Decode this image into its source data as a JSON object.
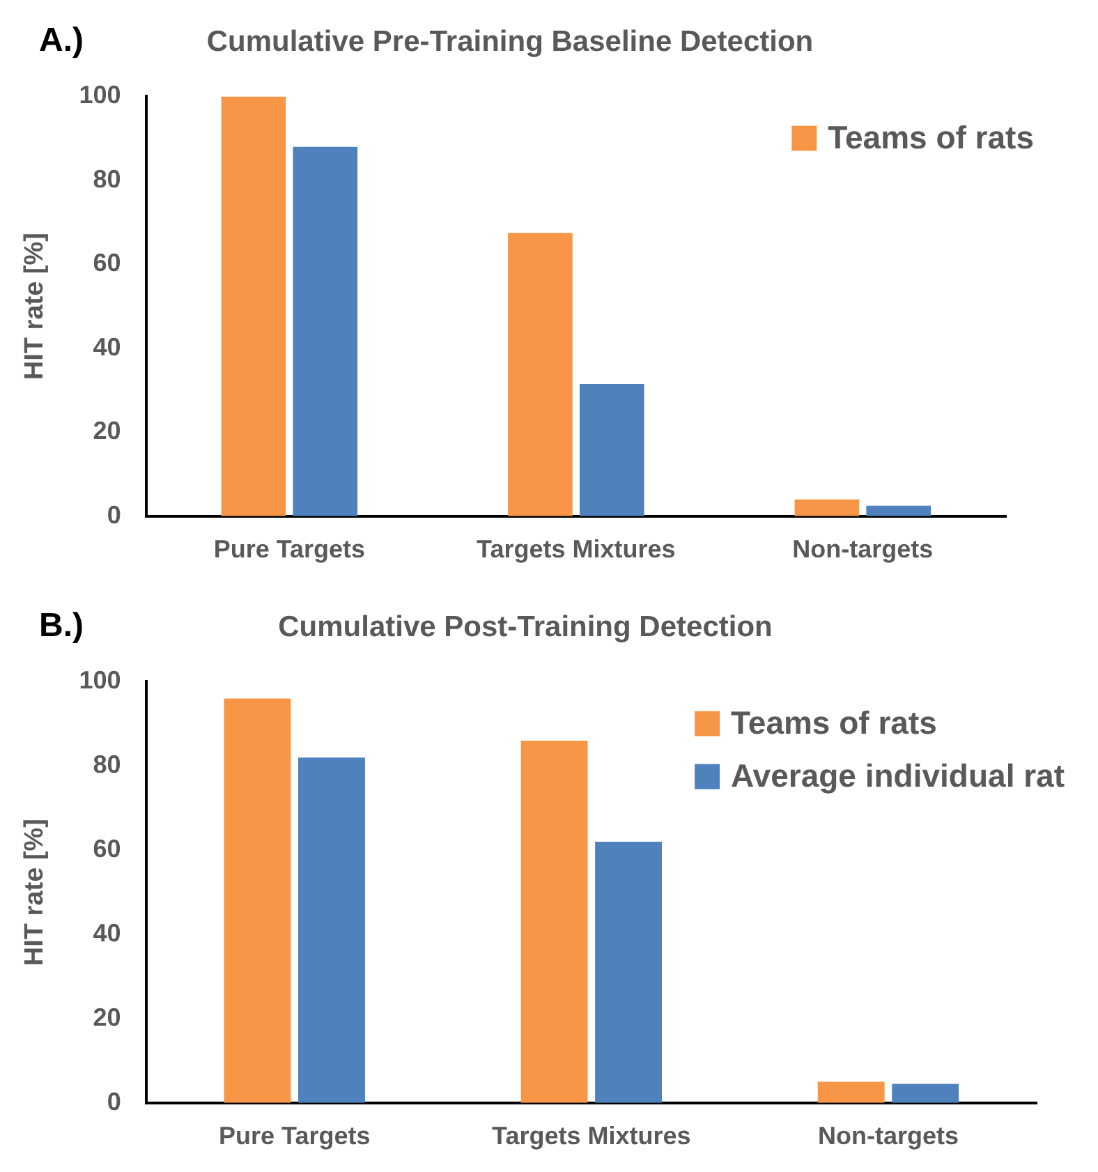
{
  "chart_data": [
    {
      "type": "bar",
      "title": "Cumulative Pre-Training Baseline Detection",
      "ylabel": "HIT rate [%]",
      "annotations": [
        "A.)"
      ],
      "categories": [
        "Pure Targets",
        "Targets Mixtures",
        "Non-targets"
      ],
      "series": [
        {
          "name": "Teams of rats",
          "color": "#f79646",
          "values": [
            100,
            67.5,
            4
          ]
        },
        {
          "color": "#4f81bd",
          "values": [
            88,
            31.5,
            2.5
          ]
        }
      ],
      "ylim": [
        0,
        100
      ],
      "yticks": [
        0,
        20,
        40,
        60,
        80,
        100
      ],
      "grid": false,
      "legend": "top right"
    },
    {
      "type": "bar",
      "title": "Cumulative Post-Training Detection",
      "ylabel": "HIT rate [%]",
      "annotations": [
        "B.)"
      ],
      "categories": [
        "Pure Targets",
        "Targets Mixtures",
        "Non-targets"
      ],
      "series": [
        {
          "name": "Teams of rats",
          "color": "#f79646",
          "values": [
            96,
            86,
            5
          ]
        },
        {
          "name": "Average individual rat",
          "color": "#4f81bd",
          "values": [
            82,
            62,
            4.5
          ]
        }
      ],
      "ylim": [
        0,
        100
      ],
      "yticks": [
        0,
        20,
        40,
        60,
        80,
        100
      ],
      "grid": false,
      "legend": "top right"
    }
  ]
}
